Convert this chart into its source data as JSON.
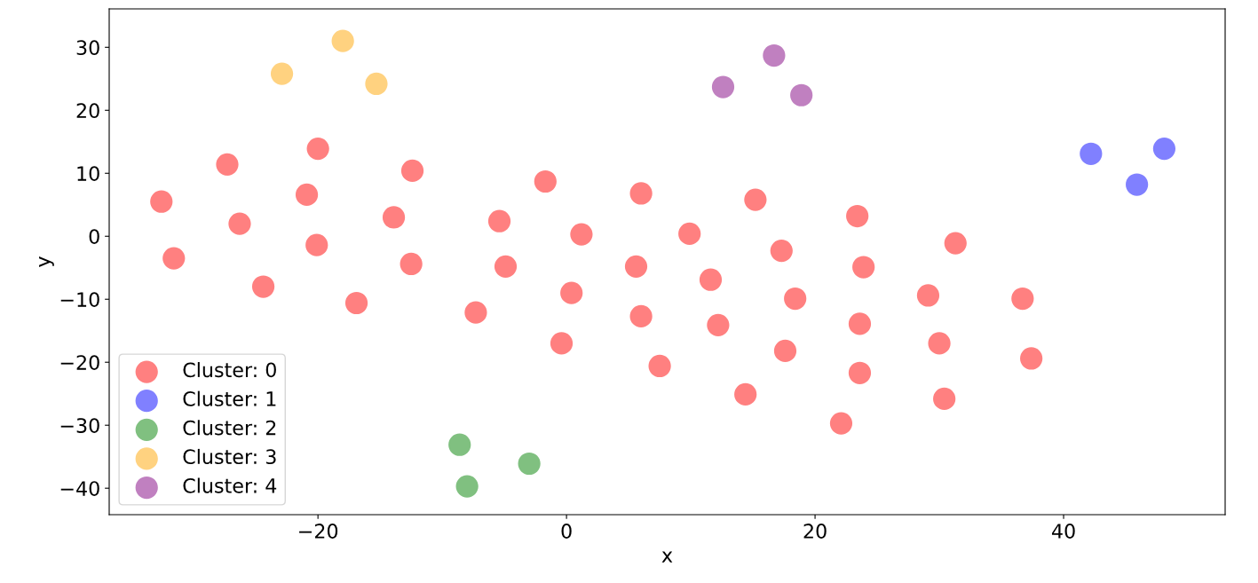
{
  "chart_data": {
    "type": "scatter",
    "xlabel": "x",
    "ylabel": "y",
    "xlim": [
      -36.8,
      53.0
    ],
    "ylim": [
      -44.2,
      36.1
    ],
    "xticks": [
      {
        "value": -20,
        "label": "−20"
      },
      0,
      20,
      40
    ],
    "yticks": [
      {
        "value": -40,
        "label": "−40"
      },
      {
        "value": -30,
        "label": "−30"
      },
      {
        "value": -20,
        "label": "−20"
      },
      {
        "value": -10,
        "label": "−10"
      },
      0,
      10,
      20,
      30
    ],
    "grid": false,
    "legend": "bottom left",
    "marker": "circle",
    "series": [
      {
        "name": "Cluster: 0",
        "color": "#ff8080",
        "x": [
          -32.6,
          -31.6,
          -27.3,
          -26.3,
          -24.4,
          -20.9,
          -20.0,
          -20.1,
          -16.9,
          -13.9,
          -12.4,
          -12.5,
          -7.3,
          -5.4,
          -4.9,
          -1.7,
          -0.4,
          0.4,
          1.2,
          6.0,
          5.6,
          6.0,
          7.5,
          9.9,
          11.6,
          12.2,
          14.4,
          15.2,
          17.3,
          17.6,
          18.4,
          22.1,
          23.4,
          23.9,
          23.6,
          23.6,
          29.1,
          30.0,
          30.4,
          31.3,
          36.7,
          37.4
        ],
        "values": [
          5.5,
          -3.5,
          11.4,
          2.0,
          -8.0,
          6.6,
          13.9,
          -1.4,
          -10.6,
          3.0,
          10.4,
          -4.4,
          -12.1,
          2.4,
          -4.8,
          8.7,
          -17.0,
          -9.0,
          0.3,
          6.8,
          -4.8,
          -12.7,
          -20.6,
          0.4,
          -6.9,
          -14.1,
          -25.1,
          5.8,
          -2.3,
          -18.2,
          -9.9,
          -29.7,
          3.2,
          -4.9,
          -13.9,
          -21.7,
          -9.4,
          -17.0,
          -25.8,
          -1.1,
          -9.9,
          -19.4
        ]
      },
      {
        "name": "Cluster: 1",
        "color": "#8080ff",
        "x": [
          42.2,
          45.9,
          48.1
        ],
        "values": [
          13.1,
          8.2,
          13.9
        ]
      },
      {
        "name": "Cluster: 2",
        "color": "#80c080",
        "x": [
          -8.6,
          -8.0,
          -3.0
        ],
        "values": [
          -33.1,
          -39.7,
          -36.1
        ]
      },
      {
        "name": "Cluster: 3",
        "color": "#ffd280",
        "x": [
          -22.9,
          -18.0,
          -15.3
        ],
        "values": [
          25.8,
          31.0,
          24.2
        ]
      },
      {
        "name": "Cluster: 4",
        "color": "#c080c0",
        "x": [
          12.6,
          16.7,
          18.9
        ],
        "values": [
          23.7,
          28.7,
          22.4
        ]
      }
    ]
  }
}
